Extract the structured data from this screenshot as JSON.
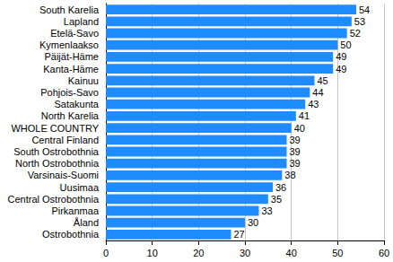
{
  "chart_data": {
    "type": "bar",
    "orientation": "horizontal",
    "categories": [
      "South Karelia",
      "Lapland",
      "Etelä-Savo",
      "Kymenlaakso",
      "Päijät-Häme",
      "Kanta-Häme",
      "Kainuu",
      "Pohjois-Savo",
      "Satakunta",
      "North Karelia",
      "WHOLE COUNTRY",
      "Central Finland",
      "South Ostrobothnia",
      "North Ostrobothnia",
      "Varsinais-Suomi",
      "Uusimaa",
      "Central Ostrobothnia",
      "Pirkanmaa",
      "Åland",
      "Ostrobothnia"
    ],
    "values": [
      54,
      53,
      52,
      50,
      49,
      49,
      45,
      44,
      43,
      41,
      40,
      39,
      39,
      39,
      38,
      36,
      35,
      33,
      30,
      27
    ],
    "color": "#1e8cff",
    "xlim": [
      0,
      60
    ],
    "xticks": [
      0,
      10,
      20,
      30,
      40,
      50,
      60
    ],
    "grid": true,
    "data_labels": true
  }
}
